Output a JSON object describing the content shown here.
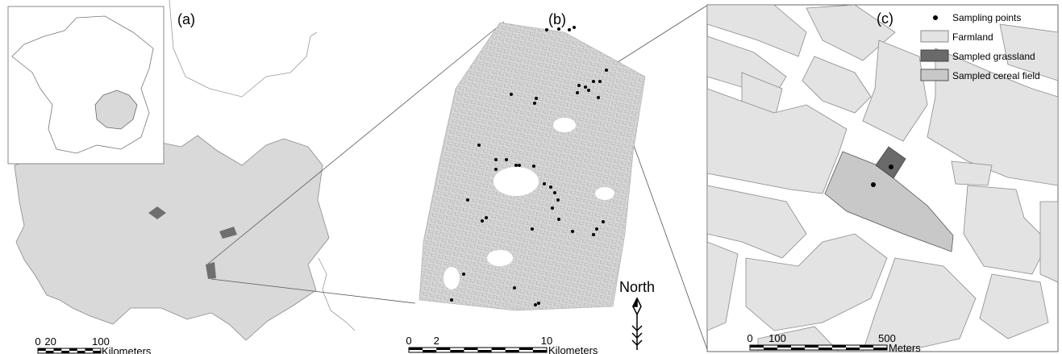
{
  "panels": [
    {
      "label": "(a)",
      "scale_bar": {
        "ticks": [
          0,
          20,
          100
        ],
        "unit": "Kilometers"
      }
    },
    {
      "label": "(b)",
      "scale_bar": {
        "ticks": [
          0,
          2,
          10
        ],
        "unit": "Kilometers"
      },
      "north_arrow": "North"
    },
    {
      "label": "(c)",
      "legend": [
        "Sampling points",
        "Farmland",
        "Sampled grassland",
        "Sampled cereal field"
      ],
      "scale_bar": {
        "ticks": [
          0,
          100,
          500
        ],
        "unit": "Meters"
      }
    }
  ]
}
